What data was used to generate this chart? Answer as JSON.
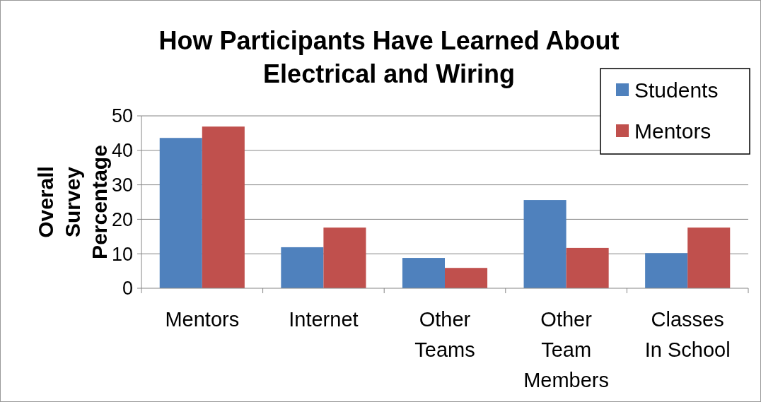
{
  "chart_data": {
    "type": "bar",
    "title": "How Participants Have Learned About Electrical and Wiring",
    "ylabel": "Overall Survey Percentage",
    "categories": [
      "Mentors",
      "Internet",
      "Other Teams",
      "Other Team Members",
      "Classes In School"
    ],
    "series": [
      {
        "name": "Students",
        "color": "#4f81bd",
        "values": [
          43.6,
          11.9,
          8.8,
          25.6,
          10.2
        ]
      },
      {
        "name": "Mentors",
        "color": "#c0504d",
        "values": [
          46.9,
          17.6,
          5.9,
          11.7,
          17.6
        ]
      }
    ],
    "ylim": [
      0,
      50
    ],
    "yticks": [
      0,
      10,
      20,
      30,
      40,
      50
    ],
    "grid": "y",
    "legend": "top right"
  }
}
